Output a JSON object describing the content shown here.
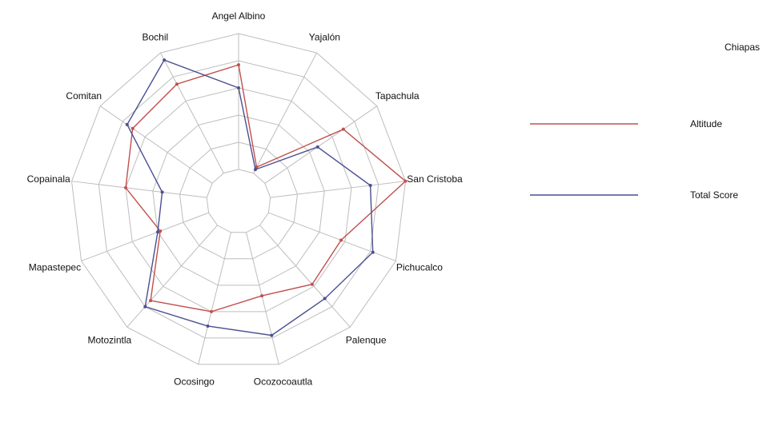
{
  "chart_data": {
    "type": "radar",
    "title": "Chiapas",
    "categories": [
      "Angel Albino",
      "Yajalón",
      "Tapachula",
      "San Cristoba",
      "Pichucalco",
      "Palenque",
      "Ocozocoautla",
      "Ocosingo",
      "Motozintla",
      "Mapastepec",
      "Copainala",
      "Comitan",
      "Bochil"
    ],
    "rlim": [
      0,
      1
    ],
    "rings": 5,
    "grid": true,
    "legend_position": "right",
    "series": [
      {
        "name": "Altitude",
        "color": "#c0504d",
        "values": [
          0.77,
          0.05,
          0.7,
          1.0,
          0.57,
          0.58,
          0.48,
          0.6,
          0.74,
          0.38,
          0.6,
          0.71,
          0.74
        ]
      },
      {
        "name": "Total Score",
        "color": "#4b4f8f",
        "values": [
          0.6,
          0.03,
          0.47,
          0.74,
          0.82,
          0.72,
          0.78,
          0.71,
          0.8,
          0.4,
          0.33,
          0.76,
          0.94
        ]
      }
    ]
  }
}
